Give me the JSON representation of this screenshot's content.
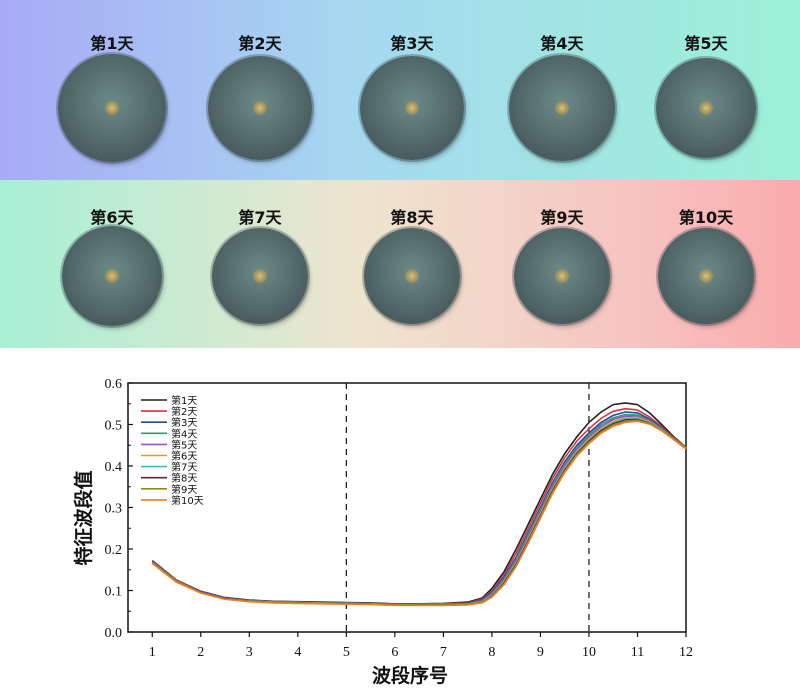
{
  "photos": {
    "days": [
      "第1天",
      "第2天",
      "第3天",
      "第4天",
      "第5天",
      "第6天",
      "第7天",
      "第8天",
      "第9天",
      "第10天"
    ]
  },
  "chart_data": {
    "type": "line",
    "xlabel": "波段序号",
    "ylabel": "特征波段值",
    "xlim": [
      0.5,
      12
    ],
    "ylim": [
      0,
      0.6
    ],
    "xticks": [
      1,
      2,
      3,
      4,
      5,
      6,
      7,
      8,
      9,
      10,
      11,
      12
    ],
    "yticks": [
      0.0,
      0.1,
      0.2,
      0.3,
      0.4,
      0.5,
      0.6
    ],
    "vlines": [
      5,
      10
    ],
    "legend_position": "top-left",
    "x": [
      1,
      1.5,
      2,
      2.5,
      3,
      3.5,
      4,
      4.5,
      5,
      5.5,
      6,
      6.5,
      7,
      7.5,
      7.8,
      8,
      8.25,
      8.5,
      8.75,
      9,
      9.25,
      9.5,
      9.75,
      10,
      10.25,
      10.5,
      10.75,
      11,
      11.25,
      11.5,
      11.75,
      12
    ],
    "series": [
      {
        "name": "第1天",
        "color": "#222222",
        "values": [
          0.172,
          0.125,
          0.098,
          0.083,
          0.077,
          0.074,
          0.073,
          0.072,
          0.071,
          0.07,
          0.068,
          0.068,
          0.069,
          0.072,
          0.082,
          0.105,
          0.145,
          0.2,
          0.26,
          0.32,
          0.38,
          0.43,
          0.47,
          0.505,
          0.53,
          0.548,
          0.552,
          0.548,
          0.528,
          0.5,
          0.47,
          0.445
        ]
      },
      {
        "name": "第2天",
        "color": "#e0303a",
        "values": [
          0.17,
          0.124,
          0.097,
          0.082,
          0.076,
          0.073,
          0.072,
          0.071,
          0.07,
          0.069,
          0.067,
          0.067,
          0.068,
          0.07,
          0.079,
          0.1,
          0.138,
          0.19,
          0.25,
          0.31,
          0.37,
          0.42,
          0.46,
          0.49,
          0.515,
          0.532,
          0.538,
          0.535,
          0.518,
          0.495,
          0.468,
          0.445
        ]
      },
      {
        "name": "第3天",
        "color": "#1f4ea6",
        "values": [
          0.169,
          0.123,
          0.097,
          0.082,
          0.076,
          0.073,
          0.072,
          0.071,
          0.07,
          0.069,
          0.067,
          0.067,
          0.067,
          0.069,
          0.077,
          0.096,
          0.132,
          0.18,
          0.24,
          0.3,
          0.36,
          0.41,
          0.45,
          0.48,
          0.505,
          0.522,
          0.53,
          0.528,
          0.513,
          0.492,
          0.467,
          0.444
        ]
      },
      {
        "name": "第4天",
        "color": "#2e9e6e",
        "values": [
          0.168,
          0.123,
          0.096,
          0.081,
          0.075,
          0.072,
          0.071,
          0.07,
          0.069,
          0.068,
          0.066,
          0.066,
          0.066,
          0.068,
          0.075,
          0.093,
          0.128,
          0.175,
          0.235,
          0.295,
          0.355,
          0.405,
          0.445,
          0.475,
          0.5,
          0.516,
          0.524,
          0.523,
          0.51,
          0.49,
          0.466,
          0.444
        ]
      },
      {
        "name": "第5天",
        "color": "#9b4fd6",
        "values": [
          0.168,
          0.122,
          0.096,
          0.081,
          0.075,
          0.072,
          0.071,
          0.07,
          0.069,
          0.068,
          0.066,
          0.066,
          0.066,
          0.067,
          0.074,
          0.091,
          0.125,
          0.172,
          0.23,
          0.29,
          0.35,
          0.4,
          0.44,
          0.47,
          0.495,
          0.512,
          0.52,
          0.52,
          0.508,
          0.489,
          0.465,
          0.443
        ]
      },
      {
        "name": "第6天",
        "color": "#d8a21e",
        "values": [
          0.167,
          0.122,
          0.095,
          0.08,
          0.075,
          0.072,
          0.071,
          0.07,
          0.069,
          0.068,
          0.066,
          0.066,
          0.066,
          0.067,
          0.073,
          0.089,
          0.122,
          0.168,
          0.225,
          0.285,
          0.345,
          0.395,
          0.435,
          0.465,
          0.49,
          0.507,
          0.516,
          0.517,
          0.506,
          0.488,
          0.465,
          0.443
        ]
      },
      {
        "name": "第7天",
        "color": "#2fc0c8",
        "values": [
          0.167,
          0.121,
          0.095,
          0.08,
          0.074,
          0.071,
          0.07,
          0.069,
          0.068,
          0.067,
          0.065,
          0.065,
          0.065,
          0.066,
          0.072,
          0.088,
          0.12,
          0.166,
          0.222,
          0.282,
          0.342,
          0.392,
          0.432,
          0.462,
          0.487,
          0.504,
          0.513,
          0.514,
          0.504,
          0.487,
          0.464,
          0.442
        ]
      },
      {
        "name": "第8天",
        "color": "#5a2a3a",
        "values": [
          0.166,
          0.121,
          0.095,
          0.08,
          0.074,
          0.071,
          0.07,
          0.069,
          0.068,
          0.067,
          0.065,
          0.065,
          0.065,
          0.066,
          0.071,
          0.086,
          0.118,
          0.163,
          0.22,
          0.28,
          0.34,
          0.39,
          0.43,
          0.46,
          0.485,
          0.502,
          0.511,
          0.512,
          0.503,
          0.486,
          0.464,
          0.442
        ]
      },
      {
        "name": "第9天",
        "color": "#8e8a18",
        "values": [
          0.166,
          0.121,
          0.094,
          0.079,
          0.074,
          0.071,
          0.07,
          0.069,
          0.068,
          0.067,
          0.065,
          0.065,
          0.065,
          0.066,
          0.071,
          0.085,
          0.116,
          0.16,
          0.217,
          0.277,
          0.337,
          0.387,
          0.427,
          0.457,
          0.482,
          0.499,
          0.508,
          0.51,
          0.502,
          0.486,
          0.464,
          0.442
        ]
      },
      {
        "name": "第10天",
        "color": "#f07d1e",
        "values": [
          0.165,
          0.12,
          0.094,
          0.079,
          0.073,
          0.07,
          0.069,
          0.068,
          0.067,
          0.066,
          0.064,
          0.064,
          0.064,
          0.065,
          0.07,
          0.084,
          0.114,
          0.158,
          0.214,
          0.274,
          0.334,
          0.384,
          0.424,
          0.454,
          0.479,
          0.496,
          0.505,
          0.508,
          0.501,
          0.485,
          0.463,
          0.441
        ]
      }
    ]
  }
}
